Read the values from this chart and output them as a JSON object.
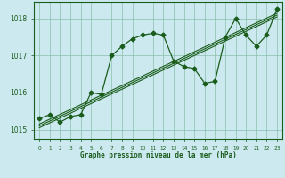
{
  "xlabel": "Graphe pression niveau de la mer (hPa)",
  "bg_color": "#cce9f0",
  "line_color": "#1a5c1a",
  "grid_color": "#8bbfaa",
  "x_values": [
    0,
    1,
    2,
    3,
    4,
    5,
    6,
    7,
    8,
    9,
    10,
    11,
    12,
    13,
    14,
    15,
    16,
    17,
    18,
    19,
    20,
    21,
    22,
    23
  ],
  "y_main": [
    1015.3,
    1015.4,
    1015.2,
    1015.35,
    1015.4,
    1016.0,
    1015.95,
    1017.0,
    1017.25,
    1017.45,
    1017.55,
    1017.6,
    1017.55,
    1016.85,
    1016.7,
    1016.65,
    1016.25,
    1016.3,
    1017.5,
    1018.0,
    1017.55,
    1017.25,
    1017.55,
    1018.25
  ],
  "y_trend1": [
    1015.15,
    1015.28,
    1015.41,
    1015.54,
    1015.67,
    1015.8,
    1015.93,
    1016.06,
    1016.19,
    1016.32,
    1016.45,
    1016.58,
    1016.71,
    1016.84,
    1016.97,
    1017.1,
    1017.23,
    1017.36,
    1017.49,
    1017.62,
    1017.75,
    1017.88,
    1018.01,
    1018.14
  ],
  "y_trend2": [
    1015.1,
    1015.23,
    1015.36,
    1015.49,
    1015.62,
    1015.75,
    1015.88,
    1016.01,
    1016.14,
    1016.27,
    1016.4,
    1016.53,
    1016.66,
    1016.79,
    1016.92,
    1017.05,
    1017.18,
    1017.31,
    1017.44,
    1017.57,
    1017.7,
    1017.83,
    1017.96,
    1018.09
  ],
  "y_trend3": [
    1015.05,
    1015.18,
    1015.31,
    1015.44,
    1015.57,
    1015.7,
    1015.83,
    1015.96,
    1016.09,
    1016.22,
    1016.35,
    1016.48,
    1016.61,
    1016.74,
    1016.87,
    1017.0,
    1017.13,
    1017.26,
    1017.39,
    1017.52,
    1017.65,
    1017.78,
    1017.91,
    1018.04
  ],
  "ylim": [
    1014.75,
    1018.45
  ],
  "xlim": [
    -0.5,
    23.5
  ],
  "yticks": [
    1015,
    1016,
    1017,
    1018
  ],
  "xticks": [
    0,
    1,
    2,
    3,
    4,
    5,
    6,
    7,
    8,
    9,
    10,
    11,
    12,
    13,
    14,
    15,
    16,
    17,
    18,
    19,
    20,
    21,
    22,
    23
  ]
}
